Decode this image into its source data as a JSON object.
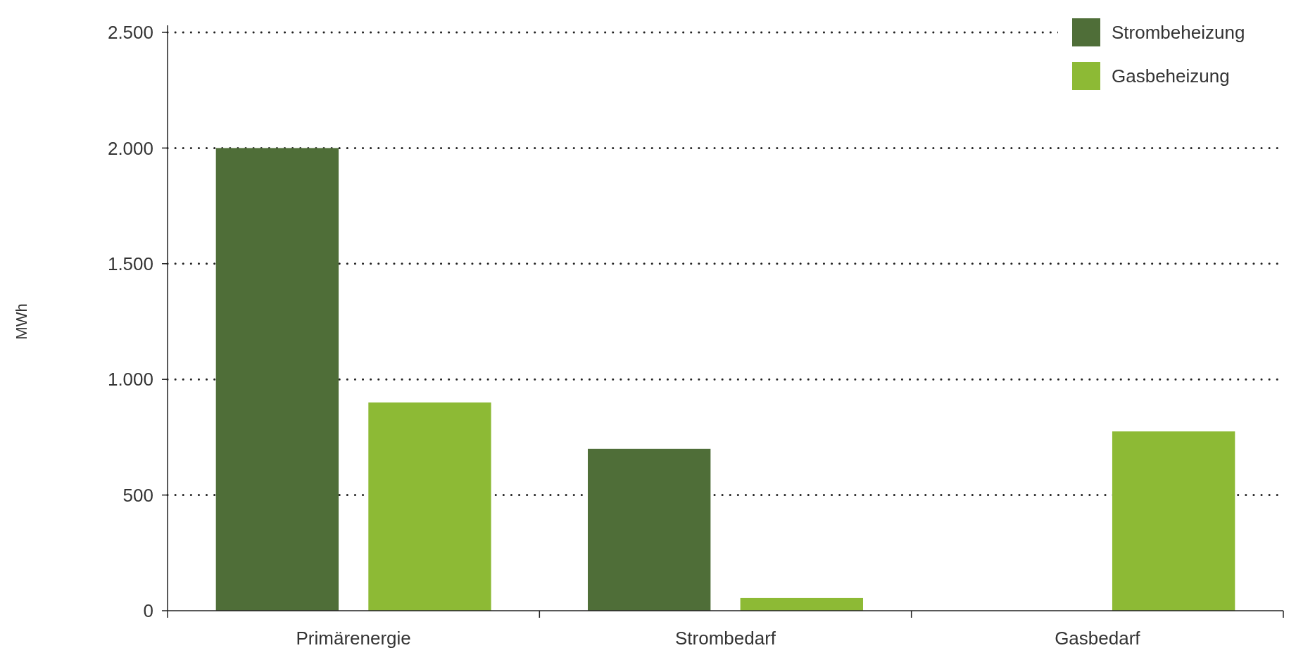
{
  "chart_data": {
    "type": "bar",
    "ylabel": "MWh",
    "categories": [
      "Primärenergie",
      "Strombedarf",
      "Gasbedarf"
    ],
    "series": [
      {
        "name": "Strombeheizung",
        "color": "#4f6e38",
        "values": [
          2000,
          700,
          0
        ]
      },
      {
        "name": "Gasbeheizung",
        "color": "#8dba35",
        "values": [
          900,
          55,
          775
        ]
      }
    ],
    "ylim": [
      0,
      2500
    ],
    "yticks": [
      0,
      {
        "value": 500,
        "label": "500"
      },
      {
        "value": 1000,
        "label": "1.000"
      },
      {
        "value": 1500,
        "label": "1.500"
      },
      {
        "value": 2000,
        "label": "2.000"
      },
      {
        "value": 2500,
        "label": "2.500"
      }
    ],
    "grid": "y",
    "legend": "top right"
  }
}
